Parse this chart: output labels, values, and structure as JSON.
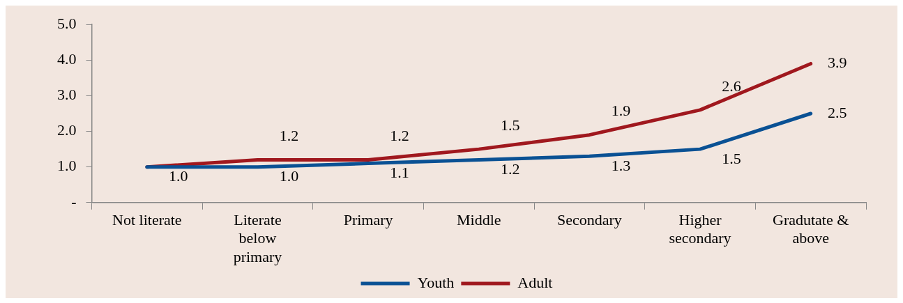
{
  "chart_data": {
    "type": "line",
    "categories": [
      "Not literate",
      "Literate below primary",
      "Primary",
      "Middle",
      "Secondary",
      "Higher secondary",
      "Gradutate & above"
    ],
    "series": [
      {
        "name": "Youth",
        "color": "#0a5194",
        "values": [
          1.0,
          1.0,
          1.1,
          1.2,
          1.3,
          1.5,
          2.5
        ],
        "value_labels": [
          "1.0",
          "1.0",
          "1.1",
          "1.2",
          "1.3",
          "1.5",
          "2.5"
        ]
      },
      {
        "name": "Adult",
        "color": "#a0181e",
        "values": [
          1.0,
          1.2,
          1.2,
          1.5,
          1.9,
          2.6,
          3.9
        ],
        "value_labels": [
          null,
          "1.2",
          "1.2",
          "1.5",
          "1.9",
          "2.6",
          "3.9"
        ]
      }
    ],
    "ylim": [
      0,
      5
    ],
    "yticks": [
      {
        "value": 0,
        "label": "-"
      },
      {
        "value": 1,
        "label": "1.0"
      },
      {
        "value": 2,
        "label": "2.0"
      },
      {
        "value": 3,
        "label": "3.0"
      },
      {
        "value": 4,
        "label": "4.0"
      },
      {
        "value": 5,
        "label": "5.0"
      }
    ],
    "grid": false,
    "legend": "bottom",
    "marker": "none",
    "line_style": "solid"
  }
}
